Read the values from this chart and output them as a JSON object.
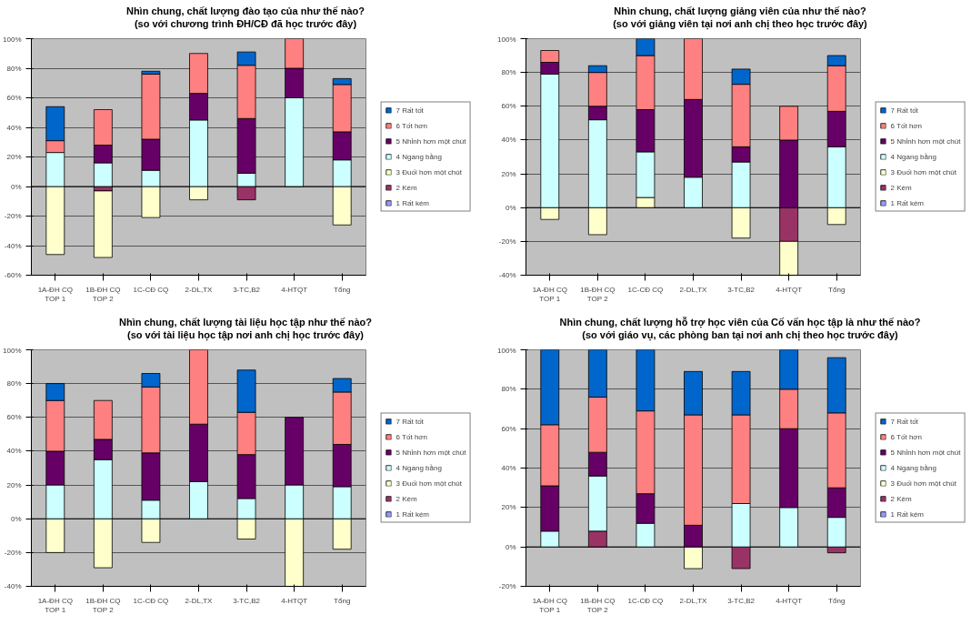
{
  "chart_data": [
    {
      "type": "bar",
      "stacked": true,
      "title": "Nhìn chung, chất lượng đào tạo của như thế nào?",
      "subtitle": "(so với chương trình ĐH/CĐ đã học trước đây)",
      "categories": [
        "1A-ĐH CQ TOP 1",
        "1B-ĐH CQ TOP 2",
        "1C-CĐ CQ",
        "2-DL,TX",
        "3-TC,B2",
        "4-HTQT",
        "Tổng"
      ],
      "ylim": [
        -60,
        100
      ],
      "yticks": [
        {
          "value": -60,
          "label": "-60%"
        },
        {
          "value": -40,
          "label": "-40%"
        },
        {
          "value": -20,
          "label": "-20%"
        },
        {
          "value": 0,
          "label": "0%"
        },
        {
          "value": 20,
          "label": "20%"
        },
        {
          "value": 40,
          "label": "40%"
        },
        {
          "value": 60,
          "label": "60%"
        },
        {
          "value": 80,
          "label": "80%"
        },
        {
          "value": 100,
          "label": "100%"
        }
      ],
      "grid": "y",
      "legend": "right",
      "series": [
        {
          "name": "1 Rất kém",
          "color": "#9999ff",
          "values": [
            null,
            null,
            null,
            null,
            null,
            null,
            null
          ]
        },
        {
          "name": "2 Kém",
          "color": "#993366",
          "values": [
            null,
            -3,
            null,
            null,
            -9,
            null,
            null
          ]
        },
        {
          "name": "3 Đuối hơn một chút",
          "color": "#ffffcc",
          "values": [
            -46,
            -45,
            -21,
            -9,
            null,
            null,
            -26
          ]
        },
        {
          "name": "4 Ngang bằng",
          "color": "#ccffff",
          "values": [
            23,
            16,
            11,
            45,
            9,
            60,
            18
          ]
        },
        {
          "name": "5 Nhỉnh hơn một chút",
          "color": "#660066",
          "values": [
            null,
            12,
            21,
            18,
            37,
            20,
            19
          ]
        },
        {
          "name": "6 Tốt hơn",
          "color": "#ff8080",
          "values": [
            8,
            24,
            44,
            27,
            36,
            20,
            32
          ]
        },
        {
          "name": "7 Rất tốt",
          "color": "#0066cc",
          "values": [
            23,
            null,
            2,
            null,
            9,
            null,
            4
          ]
        }
      ]
    },
    {
      "type": "bar",
      "stacked": true,
      "title": "Nhìn chung, chất lượng giảng viên của như thế nào?",
      "subtitle": "(so với giảng viên tại nơi anh chị theo học trước đây)",
      "categories": [
        "1A-ĐH CQ TOP 1",
        "1B-ĐH CQ TOP 2",
        "1C-CĐ CQ",
        "2-DL,TX",
        "3-TC,B2",
        "4-HTQT",
        "Tổng"
      ],
      "ylim": [
        -40,
        100
      ],
      "yticks": [
        {
          "value": -40,
          "label": "-40%"
        },
        {
          "value": -20,
          "label": "-20%"
        },
        {
          "value": 0,
          "label": "0%"
        },
        {
          "value": 20,
          "label": "20%"
        },
        {
          "value": 40,
          "label": "40%"
        },
        {
          "value": 60,
          "label": "60%"
        },
        {
          "value": 80,
          "label": "80%"
        },
        {
          "value": 100,
          "label": "100%"
        }
      ],
      "grid": "y",
      "legend": "right",
      "series": [
        {
          "name": "1 Rất kém",
          "color": "#9999ff",
          "values": [
            null,
            null,
            null,
            null,
            null,
            null,
            null
          ]
        },
        {
          "name": "2 Kém",
          "color": "#993366",
          "values": [
            null,
            null,
            null,
            null,
            null,
            -20,
            null
          ]
        },
        {
          "name": "3 Đuối hơn một chút",
          "color": "#ffffcc",
          "values": [
            -7,
            -16,
            6,
            null,
            -18,
            -20,
            -10
          ]
        },
        {
          "name": "4 Ngang bằng",
          "color": "#ccffff",
          "values": [
            79,
            52,
            27,
            18,
            27,
            null,
            36
          ]
        },
        {
          "name": "5 Nhỉnh hơn một chút",
          "color": "#660066",
          "values": [
            7,
            8,
            25,
            46,
            9,
            40,
            21
          ]
        },
        {
          "name": "6 Tốt hơn",
          "color": "#ff8080",
          "values": [
            7,
            20,
            32,
            36,
            37,
            20,
            27
          ]
        },
        {
          "name": "7 Rất tốt",
          "color": "#0066cc",
          "values": [
            null,
            4,
            10,
            null,
            9,
            null,
            6
          ]
        }
      ]
    },
    {
      "type": "bar",
      "stacked": true,
      "title": "Nhìn chung, chất lượng tài liệu học tập như thế nào?",
      "subtitle": "(so với tài liệu học tập nơi anh chị học trước đây)",
      "categories": [
        "1A-ĐH CQ TOP 1",
        "1B-ĐH CQ TOP 2",
        "1C-CĐ CQ",
        "2-DL,TX",
        "3-TC,B2",
        "4-HTQT",
        "Tổng"
      ],
      "ylim": [
        -40,
        100
      ],
      "yticks": [
        {
          "value": -40,
          "label": "-40%"
        },
        {
          "value": -20,
          "label": "-20%"
        },
        {
          "value": 0,
          "label": "0%"
        },
        {
          "value": 20,
          "label": "20%"
        },
        {
          "value": 40,
          "label": "40%"
        },
        {
          "value": 60,
          "label": "60%"
        },
        {
          "value": 80,
          "label": "80%"
        },
        {
          "value": 100,
          "label": "100%"
        }
      ],
      "grid": "y",
      "legend": "right",
      "series": [
        {
          "name": "1 Rất kém",
          "color": "#9999ff",
          "values": [
            null,
            null,
            null,
            null,
            null,
            null,
            null
          ]
        },
        {
          "name": "2 Kém",
          "color": "#993366",
          "values": [
            null,
            null,
            null,
            null,
            null,
            null,
            null
          ]
        },
        {
          "name": "3 Đuối hơn một chút",
          "color": "#ffffcc",
          "values": [
            -20,
            -29,
            -14,
            null,
            -12,
            -40,
            -18
          ]
        },
        {
          "name": "4 Ngang bằng",
          "color": "#ccffff",
          "values": [
            20,
            35,
            11,
            22,
            12,
            20,
            19
          ]
        },
        {
          "name": "5 Nhỉnh hơn một chút",
          "color": "#660066",
          "values": [
            20,
            12,
            28,
            34,
            26,
            40,
            25
          ]
        },
        {
          "name": "6 Tốt hơn",
          "color": "#ff8080",
          "values": [
            30,
            23,
            39,
            44,
            25,
            null,
            31
          ]
        },
        {
          "name": "7 Rất tốt",
          "color": "#0066cc",
          "values": [
            10,
            null,
            8,
            null,
            25,
            null,
            8
          ]
        }
      ]
    },
    {
      "type": "bar",
      "stacked": true,
      "title": "Nhìn chung, chất lượng hỗ trợ học viên của Cố vấn học tập là như thế nào?",
      "subtitle": "(so với giáo vụ, các phòng ban tại nơi anh chị theo học trước đây)",
      "categories": [
        "1A-ĐH CQ TOP 1",
        "1B-ĐH CQ TOP 2",
        "1C-CĐ CQ",
        "2-DL,TX",
        "3-TC,B2",
        "4-HTQT",
        "Tổng"
      ],
      "ylim": [
        -20,
        100
      ],
      "yticks": [
        {
          "value": -20,
          "label": "-20%"
        },
        {
          "value": 0,
          "label": "0%"
        },
        {
          "value": 20,
          "label": "20%"
        },
        {
          "value": 40,
          "label": "40%"
        },
        {
          "value": 60,
          "label": "60%"
        },
        {
          "value": 80,
          "label": "80%"
        },
        {
          "value": 100,
          "label": "100%"
        }
      ],
      "grid": "y",
      "legend": "right",
      "series": [
        {
          "name": "1 Rất kém",
          "color": "#9999ff",
          "values": [
            null,
            null,
            null,
            null,
            null,
            null,
            null
          ]
        },
        {
          "name": "2 Kém",
          "color": "#993366",
          "values": [
            null,
            8,
            null,
            null,
            -11,
            null,
            -3
          ]
        },
        {
          "name": "3 Đuối hơn một chút",
          "color": "#ffffcc",
          "values": [
            null,
            null,
            null,
            -11,
            null,
            null,
            null
          ]
        },
        {
          "name": "4 Ngang bằng",
          "color": "#ccffff",
          "values": [
            8,
            28,
            12,
            null,
            22,
            20,
            15
          ]
        },
        {
          "name": "5 Nhỉnh hơn một chút",
          "color": "#660066",
          "values": [
            23,
            12,
            15,
            11,
            null,
            40,
            15
          ]
        },
        {
          "name": "6 Tốt hơn",
          "color": "#ff8080",
          "values": [
            31,
            28,
            42,
            56,
            45,
            20,
            38
          ]
        },
        {
          "name": "7 Rất tốt",
          "color": "#0066cc",
          "values": [
            38,
            24,
            31,
            22,
            22,
            20,
            28
          ]
        }
      ]
    }
  ]
}
